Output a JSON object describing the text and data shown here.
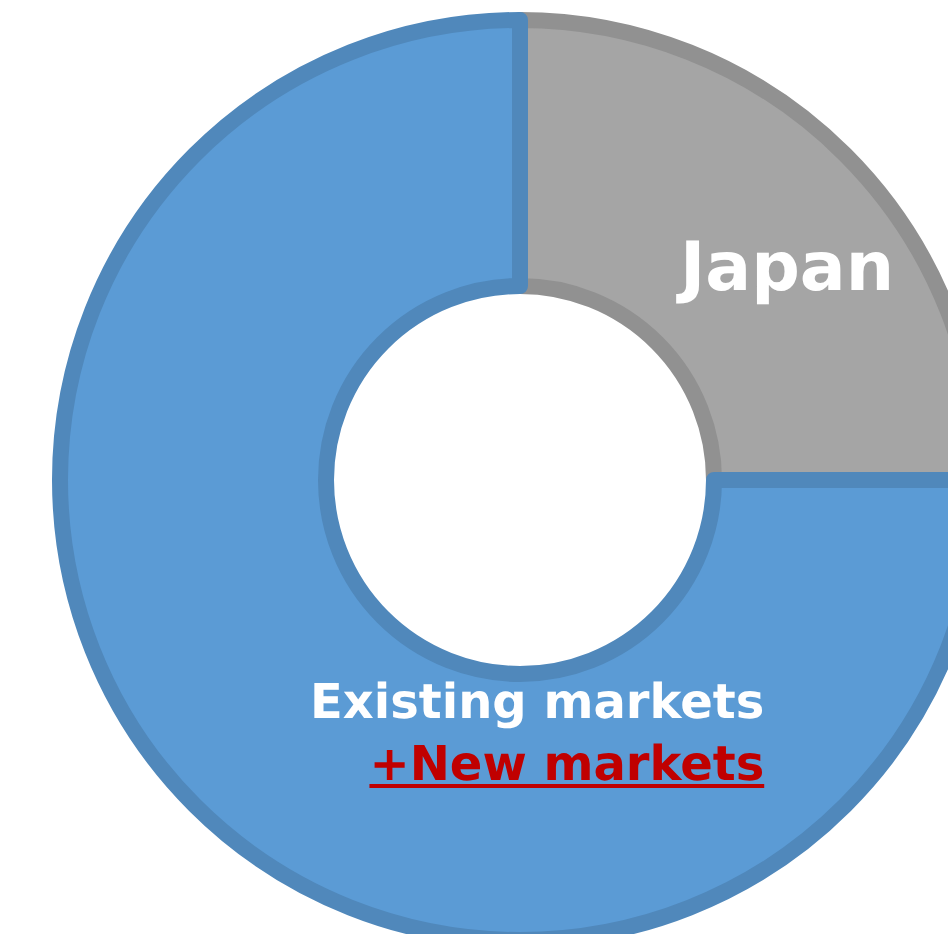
{
  "chart_data": {
    "type": "donut",
    "categories": [
      "Japan",
      "Existing markets\n+New markets"
    ],
    "values": [
      25,
      75
    ],
    "colors": [
      "#a5a5a5",
      "#5b9bd5"
    ],
    "legend": false
  }
}
